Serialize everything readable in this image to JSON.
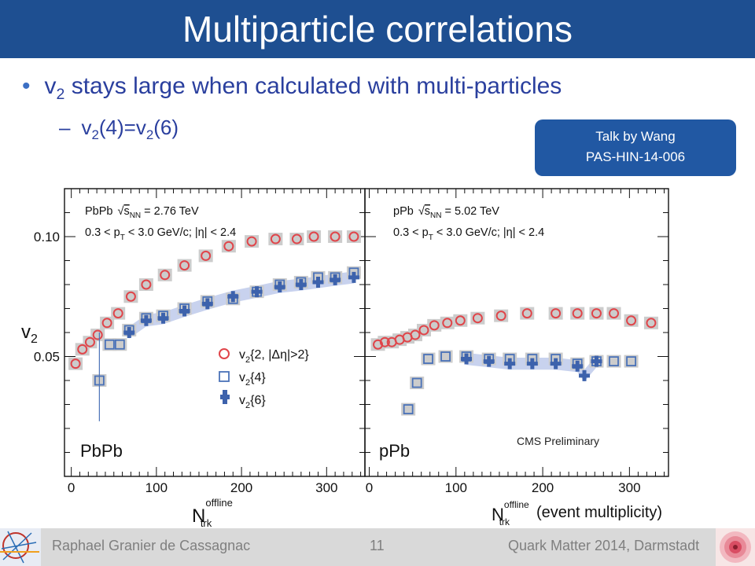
{
  "slide": {
    "title": "Multiparticle correlations",
    "bullet_main": "v",
    "bullet_main_sub": "2",
    "bullet_main_rest": " stays large when calculated with multi-particles",
    "sub_bullet_dash": "–",
    "sub_bullet_v1": "v",
    "sub_bullet_s1": "2",
    "sub_bullet_mid": "(4)=v",
    "sub_bullet_s2": "2",
    "sub_bullet_end": "(6)",
    "talk_line1": "Talk by Wang",
    "talk_line2": "PAS-HIN-14-006"
  },
  "footer": {
    "author": "Raphael Granier de Cassagnac",
    "page": "11",
    "conference": "Quark Matter 2014, Darmstadt"
  },
  "colors": {
    "title_bar": "#1e4f91",
    "text_blue": "#2a3f9e",
    "talk_box": "#2158a3",
    "v22_marker": "#e0454a",
    "v24_marker": "#4a72b8",
    "v26_marker": "#3d62ac",
    "sys_band": "#c8d2ee",
    "sys_box": "#cccccc"
  },
  "chart_data": [
    {
      "type": "scatter",
      "panel_label": "PbPb",
      "info_line1": "PbPb",
      "info_sqrt": "s",
      "info_sqrt_sub": "NN",
      "info_energy": " = 2.76 TeV",
      "info_line2": "0.3 < p",
      "info_line2_sub": "T",
      "info_line2_rest": " < 3.0 GeV/c; |η| < 2.4",
      "ylabel": "v",
      "ylabel_sub": "2",
      "xlabel": "N",
      "xlabel_sub": "trk",
      "xlabel_sup": "offline",
      "xlim": [
        -8,
        345
      ],
      "ylim": [
        0.0,
        0.12
      ],
      "x_ticks": [
        0,
        100,
        200,
        300
      ],
      "y_ticks": [
        0.05,
        0.1
      ],
      "y_tick_labels": [
        "0.05",
        "0.10"
      ],
      "grid": false,
      "legend": {
        "position": "bottom-right",
        "entries": [
          {
            "label": "v",
            "sub": "2",
            "rest": "{2, |Δη|>2}",
            "series": "v22"
          },
          {
            "label": "v",
            "sub": "2",
            "rest": "{4}",
            "series": "v24"
          },
          {
            "label": "v",
            "sub": "2",
            "rest": "{6}",
            "series": "v26"
          }
        ]
      },
      "series": [
        {
          "key": "v22",
          "marker": "open-circle",
          "x": [
            5,
            13,
            22,
            31,
            42,
            55,
            70,
            88,
            110,
            133,
            158,
            185,
            212,
            240,
            265,
            285,
            310,
            332
          ],
          "y": [
            0.047,
            0.053,
            0.056,
            0.059,
            0.064,
            0.068,
            0.075,
            0.08,
            0.084,
            0.088,
            0.092,
            0.096,
            0.098,
            0.099,
            0.099,
            0.1,
            0.1,
            0.1
          ]
        },
        {
          "key": "v24",
          "marker": "open-square",
          "x": [
            33,
            45,
            57,
            68,
            88,
            108,
            133,
            160,
            190,
            218,
            245,
            270,
            290,
            310,
            332
          ],
          "y": [
            0.04,
            0.055,
            0.055,
            0.061,
            0.066,
            0.067,
            0.07,
            0.073,
            0.074,
            0.077,
            0.08,
            0.081,
            0.083,
            0.083,
            0.085
          ]
        },
        {
          "key": "v26",
          "marker": "filled-cross",
          "x": [
            68,
            88,
            108,
            133,
            160,
            190,
            218,
            245,
            270,
            290,
            310,
            332
          ],
          "y": [
            0.06,
            0.065,
            0.066,
            0.069,
            0.072,
            0.075,
            0.077,
            0.079,
            0.08,
            0.081,
            0.082,
            0.083
          ]
        }
      ]
    },
    {
      "type": "scatter",
      "panel_label": "pPb",
      "info_line1": "pPb",
      "info_sqrt": "s",
      "info_sqrt_sub": "NN",
      "info_energy": " = 5.02 TeV",
      "info_line2": "0.3 < p",
      "info_line2_sub": "T",
      "info_line2_rest": " < 3.0 GeV/c; |η| < 2.4",
      "preliminary": "CMS Preliminary",
      "xlabel": "N",
      "xlabel_sub": "trk",
      "xlabel_sup": "offline",
      "xlabel_note": "(event multiplicity)",
      "xlim": [
        -5,
        345
      ],
      "ylim": [
        0.0,
        0.12
      ],
      "x_ticks": [
        0,
        100,
        200,
        300
      ],
      "grid": false,
      "series": [
        {
          "key": "v22",
          "marker": "open-circle",
          "x": [
            10,
            18,
            26,
            35,
            44,
            53,
            63,
            75,
            90,
            105,
            125,
            152,
            182,
            215,
            240,
            262,
            282,
            302,
            325
          ],
          "y": [
            0.055,
            0.056,
            0.056,
            0.057,
            0.058,
            0.059,
            0.061,
            0.063,
            0.064,
            0.065,
            0.066,
            0.067,
            0.068,
            0.068,
            0.068,
            0.068,
            0.068,
            0.065,
            0.064
          ]
        },
        {
          "key": "v24",
          "marker": "open-square",
          "x": [
            45,
            55,
            68,
            88,
            112,
            138,
            162,
            188,
            215,
            240,
            262,
            282,
            302
          ],
          "y": [
            0.028,
            0.039,
            0.049,
            0.05,
            0.05,
            0.049,
            0.049,
            0.049,
            0.049,
            0.047,
            0.048,
            0.048,
            0.048
          ]
        },
        {
          "key": "v26",
          "marker": "filled-cross",
          "x": [
            112,
            138,
            162,
            188,
            215,
            240,
            248,
            262
          ],
          "y": [
            0.049,
            0.048,
            0.047,
            0.047,
            0.047,
            0.046,
            0.042,
            0.048
          ]
        }
      ]
    }
  ]
}
